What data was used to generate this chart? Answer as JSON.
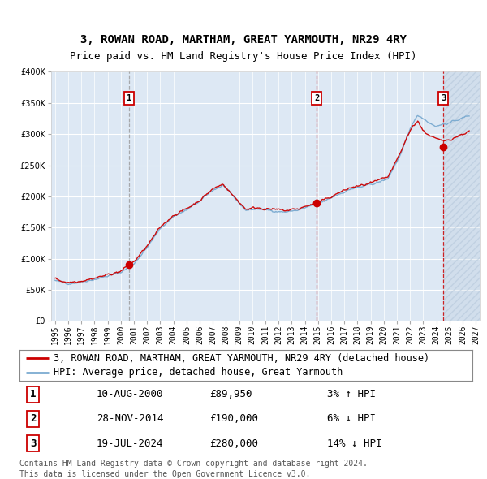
{
  "title": "3, ROWAN ROAD, MARTHAM, GREAT YARMOUTH, NR29 4RY",
  "subtitle": "Price paid vs. HM Land Registry's House Price Index (HPI)",
  "legend_line1": "3, ROWAN ROAD, MARTHAM, GREAT YARMOUTH, NR29 4RY (detached house)",
  "legend_line2": "HPI: Average price, detached house, Great Yarmouth",
  "footer1": "Contains HM Land Registry data © Crown copyright and database right 2024.",
  "footer2": "This data is licensed under the Open Government Licence v3.0.",
  "transactions": [
    {
      "num": 1,
      "date": "10-AUG-2000",
      "price": 89950,
      "pct": "3%",
      "dir": "↑",
      "year": 2000.62
    },
    {
      "num": 2,
      "date": "28-NOV-2014",
      "price": 190000,
      "pct": "6%",
      "dir": "↓",
      "year": 2014.91
    },
    {
      "num": 3,
      "date": "19-JUL-2024",
      "price": 280000,
      "pct": "14%",
      "dir": "↓",
      "year": 2024.54
    }
  ],
  "ylim": [
    0,
    400000
  ],
  "xlim_start": 1994.7,
  "xlim_end": 2027.3,
  "red_line_color": "#cc0000",
  "blue_line_color": "#7aaad0",
  "bg_color": "#dde8f4",
  "hatch_color": "#b0c4d8",
  "grid_color": "#ffffff",
  "vline1_color": "#999999",
  "vline2_color": "#cc0000",
  "marker_color": "#cc0000",
  "box_color": "#cc0000",
  "title_fontsize": 10,
  "subtitle_fontsize": 9,
  "tick_fontsize": 7,
  "legend_fontsize": 8.5,
  "table_fontsize": 9,
  "footer_fontsize": 7
}
